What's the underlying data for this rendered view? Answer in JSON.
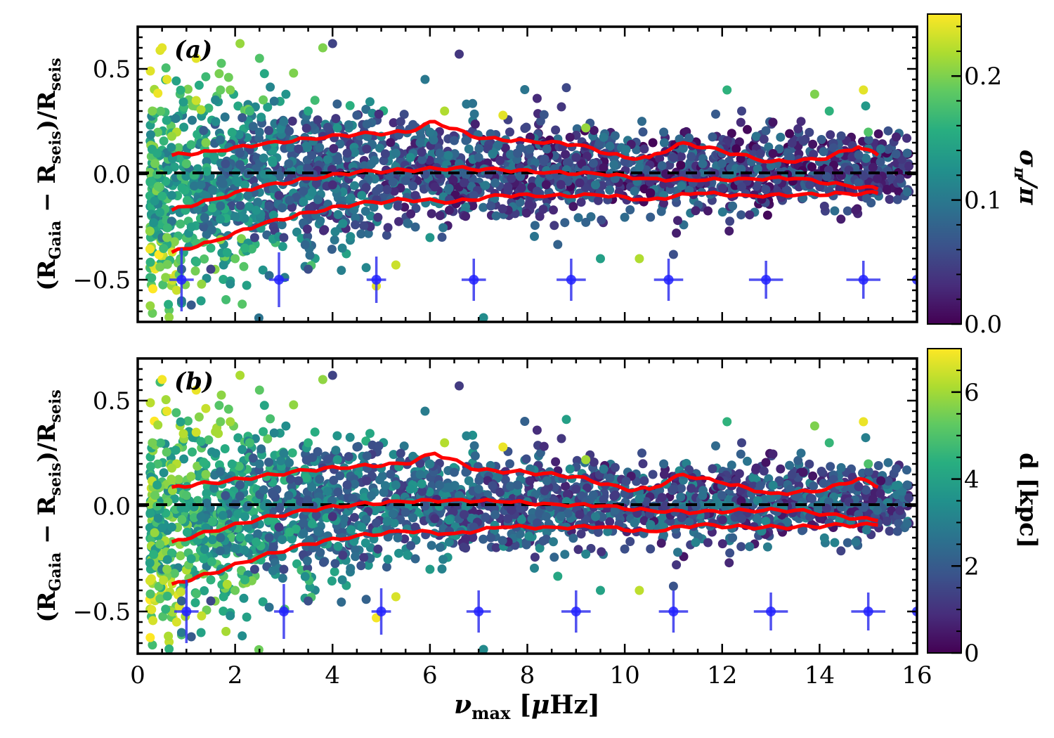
{
  "chart_data": [
    {
      "type": "scatter",
      "panel_label": "(a)",
      "xlabel": "νmax [μHz]",
      "ylabel": "(RGaia − Rseis)/Rseis",
      "xlim": [
        0,
        16
      ],
      "ylim": [
        -0.7,
        0.7
      ],
      "x_ticks": [
        0,
        2,
        4,
        6,
        8,
        10,
        12,
        14,
        16
      ],
      "y_ticks": [
        -0.5,
        0.0,
        0.5
      ],
      "y_tick_labels": [
        "−0.5",
        "0.0",
        "0.5"
      ],
      "reference_line_y": 0.0,
      "colorbar": {
        "label": "σπ/π",
        "range": [
          0.0,
          0.25
        ],
        "ticks": [
          0.0,
          0.1,
          0.2
        ],
        "tick_labels": [
          "0.0",
          "0.1",
          "0.2"
        ],
        "colormap": "viridis"
      },
      "error_bars": [
        {
          "x": 0.9,
          "y": -0.5,
          "xerr": 0.25,
          "yerr": 0.15
        },
        {
          "x": 2.9,
          "y": -0.5,
          "xerr": 0.2,
          "yerr": 0.13
        },
        {
          "x": 4.9,
          "y": -0.5,
          "xerr": 0.2,
          "yerr": 0.11
        },
        {
          "x": 6.9,
          "y": -0.5,
          "xerr": 0.25,
          "yerr": 0.1
        },
        {
          "x": 8.9,
          "y": -0.5,
          "xerr": 0.3,
          "yerr": 0.1
        },
        {
          "x": 10.9,
          "y": -0.5,
          "xerr": 0.3,
          "yerr": 0.1
        },
        {
          "x": 12.9,
          "y": -0.5,
          "xerr": 0.35,
          "yerr": 0.09
        },
        {
          "x": 14.9,
          "y": -0.5,
          "xerr": 0.35,
          "yerr": 0.09
        },
        {
          "x": 16.0,
          "y": -0.5,
          "xerr": 0.1,
          "yerr": 0.0
        }
      ],
      "percentile_curves": [
        {
          "name": "84th percentile",
          "x": [
            0.7,
            1.5,
            2.5,
            3.5,
            4.5,
            5.5,
            6.1,
            7.0,
            8.0,
            9.0,
            10.0,
            10.5,
            11.2,
            12.0,
            13.0,
            14.0,
            14.8,
            15.2
          ],
          "y": [
            0.09,
            0.11,
            0.14,
            0.17,
            0.19,
            0.2,
            0.25,
            0.17,
            0.16,
            0.14,
            0.08,
            0.08,
            0.15,
            0.11,
            0.06,
            0.07,
            0.13,
            0.09
          ]
        },
        {
          "name": "median",
          "x": [
            0.7,
            1.5,
            2.5,
            3.5,
            4.5,
            5.5,
            6.5,
            7.5,
            8.5,
            9.5,
            10.5,
            11.5,
            12.5,
            13.5,
            14.5,
            15.2
          ],
          "y": [
            -0.17,
            -0.12,
            -0.06,
            -0.02,
            0.01,
            0.02,
            0.03,
            0.02,
            0.01,
            0.0,
            -0.02,
            -0.03,
            -0.02,
            -0.02,
            -0.05,
            -0.07
          ]
        },
        {
          "name": "16th percentile",
          "x": [
            0.7,
            1.5,
            2.5,
            3.5,
            4.5,
            5.5,
            6.5,
            7.5,
            8.5,
            9.5,
            10.5,
            11.5,
            12.5,
            13.5,
            14.5,
            15.2
          ],
          "y": [
            -0.37,
            -0.32,
            -0.24,
            -0.18,
            -0.14,
            -0.12,
            -0.13,
            -0.1,
            -0.1,
            -0.1,
            -0.12,
            -0.09,
            -0.1,
            -0.1,
            -0.09,
            -0.09
          ]
        }
      ]
    },
    {
      "type": "scatter",
      "panel_label": "(b)",
      "xlabel": "νmax [μHz]",
      "ylabel": "(RGaia − Rseis)/Rseis",
      "xlim": [
        0,
        16
      ],
      "ylim": [
        -0.7,
        0.7
      ],
      "x_ticks": [
        0,
        2,
        4,
        6,
        8,
        10,
        12,
        14,
        16
      ],
      "y_ticks": [
        -0.5,
        0.0,
        0.5
      ],
      "y_tick_labels": [
        "−0.5",
        "0.0",
        "0.5"
      ],
      "reference_line_y": 0.0,
      "colorbar": {
        "label": "d [kpc]",
        "range": [
          0,
          7
        ],
        "ticks": [
          0,
          2,
          4,
          6
        ],
        "tick_labels": [
          "0",
          "2",
          "4",
          "6"
        ],
        "colormap": "viridis"
      },
      "error_bars": [
        {
          "x": 1.0,
          "y": -0.5,
          "xerr": 0.25,
          "yerr": 0.15
        },
        {
          "x": 3.0,
          "y": -0.5,
          "xerr": 0.2,
          "yerr": 0.13
        },
        {
          "x": 5.0,
          "y": -0.5,
          "xerr": 0.2,
          "yerr": 0.11
        },
        {
          "x": 7.0,
          "y": -0.5,
          "xerr": 0.25,
          "yerr": 0.1
        },
        {
          "x": 9.0,
          "y": -0.5,
          "xerr": 0.3,
          "yerr": 0.1
        },
        {
          "x": 11.0,
          "y": -0.5,
          "xerr": 0.3,
          "yerr": 0.1
        },
        {
          "x": 13.0,
          "y": -0.5,
          "xerr": 0.35,
          "yerr": 0.09
        },
        {
          "x": 15.0,
          "y": -0.5,
          "xerr": 0.35,
          "yerr": 0.09
        },
        {
          "x": 16.0,
          "y": -0.5,
          "xerr": 0.1,
          "yerr": 0.0
        }
      ],
      "percentile_curves": [
        {
          "name": "84th percentile",
          "x": [
            0.7,
            1.5,
            2.5,
            3.5,
            4.5,
            5.5,
            6.1,
            7.0,
            8.0,
            9.0,
            10.0,
            10.5,
            11.2,
            12.0,
            13.0,
            14.0,
            14.8,
            15.2
          ],
          "y": [
            0.09,
            0.11,
            0.14,
            0.17,
            0.19,
            0.2,
            0.25,
            0.17,
            0.16,
            0.14,
            0.08,
            0.08,
            0.15,
            0.11,
            0.06,
            0.07,
            0.13,
            0.09
          ]
        },
        {
          "name": "median",
          "x": [
            0.7,
            1.5,
            2.5,
            3.5,
            4.5,
            5.5,
            6.5,
            7.5,
            8.5,
            9.5,
            10.5,
            11.5,
            12.5,
            13.5,
            14.5,
            15.2
          ],
          "y": [
            -0.17,
            -0.12,
            -0.06,
            -0.02,
            0.01,
            0.02,
            0.03,
            0.02,
            0.01,
            0.0,
            -0.02,
            -0.03,
            -0.02,
            -0.02,
            -0.05,
            -0.07
          ]
        },
        {
          "name": "16th percentile",
          "x": [
            0.7,
            1.5,
            2.5,
            3.5,
            4.5,
            5.5,
            6.5,
            7.5,
            8.5,
            9.5,
            10.5,
            11.5,
            12.5,
            13.5,
            14.5,
            15.2
          ],
          "y": [
            -0.37,
            -0.32,
            -0.24,
            -0.18,
            -0.14,
            -0.12,
            -0.13,
            -0.1,
            -0.1,
            -0.1,
            -0.12,
            -0.09,
            -0.1,
            -0.1,
            -0.09,
            -0.09
          ]
        }
      ]
    }
  ],
  "scatter_sample": {
    "note": "representative sample of the dense point cloud",
    "points": [
      [
        0.3,
        0.3,
        0.2,
        5.5
      ],
      [
        0.4,
        0.1,
        0.15,
        4.0
      ],
      [
        0.5,
        -0.3,
        0.1,
        3.0
      ],
      [
        0.6,
        0.45,
        0.24,
        6.8
      ],
      [
        0.7,
        -0.1,
        0.12,
        3.5
      ],
      [
        0.8,
        0.2,
        0.22,
        6.2
      ],
      [
        0.9,
        -0.45,
        0.08,
        2.2
      ],
      [
        1.0,
        0.05,
        0.18,
        5.0
      ],
      [
        1.1,
        -0.25,
        0.14,
        4.1
      ],
      [
        1.2,
        0.35,
        0.23,
        6.5
      ],
      [
        1.3,
        -0.05,
        0.1,
        3.0
      ],
      [
        1.4,
        0.15,
        0.2,
        5.6
      ],
      [
        1.5,
        -0.35,
        0.16,
        4.5
      ],
      [
        1.6,
        0.25,
        0.12,
        3.4
      ],
      [
        1.7,
        -0.15,
        0.09,
        2.5
      ],
      [
        1.8,
        0.05,
        0.06,
        1.8
      ],
      [
        1.9,
        0.4,
        0.2,
        6.0
      ],
      [
        2.0,
        -0.2,
        0.11,
        3.1
      ],
      [
        2.1,
        0.1,
        0.07,
        2.0
      ],
      [
        2.2,
        -0.05,
        0.13,
        3.6
      ],
      [
        2.3,
        0.3,
        0.17,
        4.8
      ],
      [
        2.4,
        -0.3,
        0.05,
        1.5
      ],
      [
        2.5,
        0.2,
        0.09,
        2.7
      ],
      [
        2.6,
        0.0,
        0.12,
        3.3
      ],
      [
        2.7,
        -0.15,
        0.06,
        1.9
      ],
      [
        2.8,
        0.15,
        0.14,
        4.0
      ],
      [
        2.9,
        -0.1,
        0.04,
        1.2
      ],
      [
        3.0,
        0.25,
        0.1,
        3.0
      ],
      [
        3.1,
        0.05,
        0.08,
        2.4
      ],
      [
        3.2,
        -0.2,
        0.12,
        3.5
      ],
      [
        3.3,
        0.12,
        0.05,
        1.6
      ],
      [
        3.4,
        -0.08,
        0.07,
        2.1
      ],
      [
        3.5,
        0.3,
        0.15,
        4.4
      ],
      [
        3.6,
        0.0,
        0.06,
        1.8
      ],
      [
        3.7,
        -0.12,
        0.09,
        2.6
      ],
      [
        3.8,
        0.18,
        0.04,
        1.3
      ],
      [
        3.9,
        0.07,
        0.11,
        3.1
      ],
      [
        4.0,
        -0.05,
        0.03,
        1.0
      ],
      [
        4.1,
        0.22,
        0.13,
        3.7
      ],
      [
        4.2,
        -0.15,
        0.08,
        2.3
      ],
      [
        4.3,
        0.1,
        0.05,
        1.6
      ],
      [
        4.4,
        0.0,
        0.1,
        2.9
      ],
      [
        4.5,
        0.28,
        0.07,
        2.0
      ],
      [
        4.6,
        -0.1,
        0.12,
        3.4
      ],
      [
        4.7,
        0.12,
        0.04,
        1.2
      ],
      [
        4.8,
        0.05,
        0.09,
        2.6
      ],
      [
        4.9,
        -0.08,
        0.06,
        1.7
      ],
      [
        5.0,
        0.18,
        0.11,
        3.2
      ],
      [
        5.1,
        0.02,
        0.03,
        1.0
      ],
      [
        5.2,
        -0.12,
        0.08,
        2.3
      ],
      [
        5.3,
        0.1,
        0.1,
        3.0
      ],
      [
        5.4,
        0.25,
        0.05,
        1.5
      ],
      [
        5.5,
        -0.03,
        0.07,
        2.0
      ],
      [
        5.6,
        0.08,
        0.12,
        3.5
      ],
      [
        5.7,
        -0.1,
        0.04,
        1.3
      ],
      [
        5.8,
        0.15,
        0.09,
        2.7
      ],
      [
        5.9,
        0.0,
        0.06,
        1.8
      ],
      [
        6.0,
        0.2,
        0.1,
        2.9
      ],
      [
        6.1,
        -0.06,
        0.03,
        1.0
      ],
      [
        6.2,
        0.1,
        0.08,
        2.3
      ],
      [
        6.3,
        0.02,
        0.11,
        3.1
      ],
      [
        6.4,
        -0.12,
        0.05,
        1.6
      ],
      [
        6.5,
        0.16,
        0.07,
        2.1
      ],
      [
        6.6,
        0.05,
        0.09,
        2.7
      ],
      [
        6.7,
        -0.04,
        0.04,
        1.2
      ],
      [
        6.8,
        0.12,
        0.1,
        3.0
      ],
      [
        6.9,
        -0.1,
        0.06,
        1.7
      ],
      [
        7.0,
        0.08,
        0.08,
        2.4
      ],
      [
        7.2,
        0.0,
        0.05,
        1.5
      ],
      [
        7.4,
        0.14,
        0.09,
        2.7
      ],
      [
        7.6,
        -0.06,
        0.04,
        1.3
      ],
      [
        7.8,
        0.1,
        0.07,
        2.1
      ],
      [
        8.0,
        0.02,
        0.1,
        3.0
      ],
      [
        8.2,
        -0.08,
        0.05,
        1.6
      ],
      [
        8.4,
        0.12,
        0.08,
        2.4
      ],
      [
        8.6,
        0.0,
        0.06,
        1.8
      ],
      [
        8.8,
        -0.1,
        0.09,
        2.6
      ],
      [
        9.0,
        0.08,
        0.04,
        1.2
      ],
      [
        9.2,
        0.02,
        0.07,
        2.0
      ],
      [
        9.4,
        -0.05,
        0.1,
        2.9
      ],
      [
        9.6,
        0.1,
        0.05,
        1.5
      ],
      [
        9.8,
        -0.02,
        0.08,
        2.3
      ],
      [
        10.0,
        0.06,
        0.06,
        1.8
      ],
      [
        10.2,
        -0.08,
        0.09,
        2.7
      ],
      [
        10.4,
        0.12,
        0.04,
        1.3
      ],
      [
        10.6,
        0.0,
        0.07,
        2.1
      ],
      [
        10.8,
        -0.1,
        0.1,
        3.0
      ],
      [
        11.0,
        0.08,
        0.05,
        1.6
      ],
      [
        11.2,
        0.15,
        0.08,
        2.4
      ],
      [
        11.4,
        -0.04,
        0.06,
        1.7
      ],
      [
        11.6,
        0.05,
        0.09,
        2.6
      ],
      [
        11.8,
        -0.08,
        0.04,
        1.2
      ],
      [
        12.0,
        0.1,
        0.07,
        2.0
      ],
      [
        12.2,
        0.0,
        0.1,
        2.9
      ],
      [
        12.4,
        -0.06,
        0.05,
        1.5
      ],
      [
        12.6,
        0.06,
        0.08,
        2.3
      ],
      [
        12.8,
        -0.02,
        0.06,
        1.8
      ],
      [
        13.0,
        0.04,
        0.09,
        2.7
      ],
      [
        13.2,
        -0.1,
        0.04,
        1.3
      ],
      [
        13.4,
        0.08,
        0.07,
        2.1
      ],
      [
        13.6,
        0.0,
        0.1,
        3.0
      ],
      [
        13.8,
        -0.05,
        0.05,
        1.6
      ],
      [
        14.0,
        0.06,
        0.08,
        2.4
      ],
      [
        14.2,
        -0.08,
        0.06,
        1.7
      ],
      [
        14.4,
        0.1,
        0.09,
        2.6
      ],
      [
        14.6,
        0.02,
        0.04,
        1.2
      ],
      [
        14.8,
        -0.04,
        0.07,
        2.0
      ],
      [
        15.0,
        0.12,
        0.1,
        3.0
      ],
      [
        15.2,
        -0.08,
        0.05,
        1.5
      ],
      [
        15.8,
        0.1,
        0.08,
        2.3
      ],
      [
        15.6,
        -0.12,
        0.06,
        1.8
      ],
      [
        14.9,
        0.4,
        0.24,
        6.8
      ],
      [
        13.9,
        0.38,
        0.2,
        5.6
      ],
      [
        12.1,
        0.4,
        0.16,
        4.5
      ],
      [
        11.0,
        -0.38,
        0.06,
        1.8
      ],
      [
        10.3,
        -0.4,
        0.22,
        6.3
      ],
      [
        9.5,
        -0.4,
        0.14,
        4.0
      ],
      [
        7.1,
        -0.68,
        0.12,
        3.3
      ],
      [
        6.6,
        0.57,
        0.04,
        1.2
      ],
      [
        4.0,
        0.62,
        0.05,
        1.4
      ],
      [
        3.8,
        0.6,
        0.2,
        5.8
      ],
      [
        4.9,
        -0.53,
        0.24,
        6.9
      ],
      [
        5.3,
        -0.43,
        0.23,
        6.6
      ],
      [
        2.1,
        0.62,
        0.21,
        6.1
      ],
      [
        1.7,
        0.4,
        0.19,
        5.4
      ],
      [
        1.1,
        -0.62,
        0.07,
        2.0
      ],
      [
        0.9,
        -0.6,
        0.1,
        2.9
      ],
      [
        0.5,
        0.6,
        0.24,
        6.9
      ],
      [
        0.8,
        -0.55,
        0.23,
        6.6
      ],
      [
        2.5,
        0.55,
        0.18,
        5.2
      ],
      [
        3.2,
        0.48,
        0.2,
        5.8
      ],
      [
        2.7,
        -0.48,
        0.09,
        2.6
      ],
      [
        1.3,
        -0.6,
        0.14,
        4.0
      ],
      [
        1.9,
        -0.52,
        0.12,
        3.4
      ],
      [
        3.5,
        -0.45,
        0.06,
        1.7
      ],
      [
        8.7,
        0.32,
        0.04,
        1.1
      ],
      [
        8.2,
        0.36,
        0.03,
        0.9
      ],
      [
        9.2,
        0.22,
        0.21,
        6.0
      ],
      [
        10.8,
        0.2,
        0.08,
        2.3
      ],
      [
        12.4,
        0.3,
        0.05,
        1.4
      ],
      [
        14.2,
        0.3,
        0.16,
        4.6
      ],
      [
        15.0,
        0.2,
        0.18,
        5.0
      ],
      [
        5.9,
        0.45,
        0.1,
        2.9
      ],
      [
        6.3,
        0.3,
        0.22,
        6.2
      ],
      [
        7.5,
        0.28,
        0.24,
        6.8
      ],
      [
        2.2,
        -0.35,
        0.16,
        4.5
      ],
      [
        3.0,
        -0.3,
        0.05,
        1.5
      ],
      [
        4.2,
        -0.35,
        0.11,
        3.2
      ],
      [
        5.7,
        -0.25,
        0.08,
        2.3
      ],
      [
        6.0,
        -0.3,
        0.13,
        3.8
      ],
      [
        1.5,
        -0.45,
        0.05,
        1.5
      ],
      [
        2.0,
        -0.4,
        0.19,
        5.4
      ],
      [
        0.6,
        -0.3,
        0.2,
        5.7
      ],
      [
        0.4,
        0.0,
        0.17,
        4.8
      ],
      [
        1.2,
        0.55,
        0.24,
        6.8
      ],
      [
        0.7,
        0.18,
        0.21,
        6.0
      ]
    ]
  }
}
